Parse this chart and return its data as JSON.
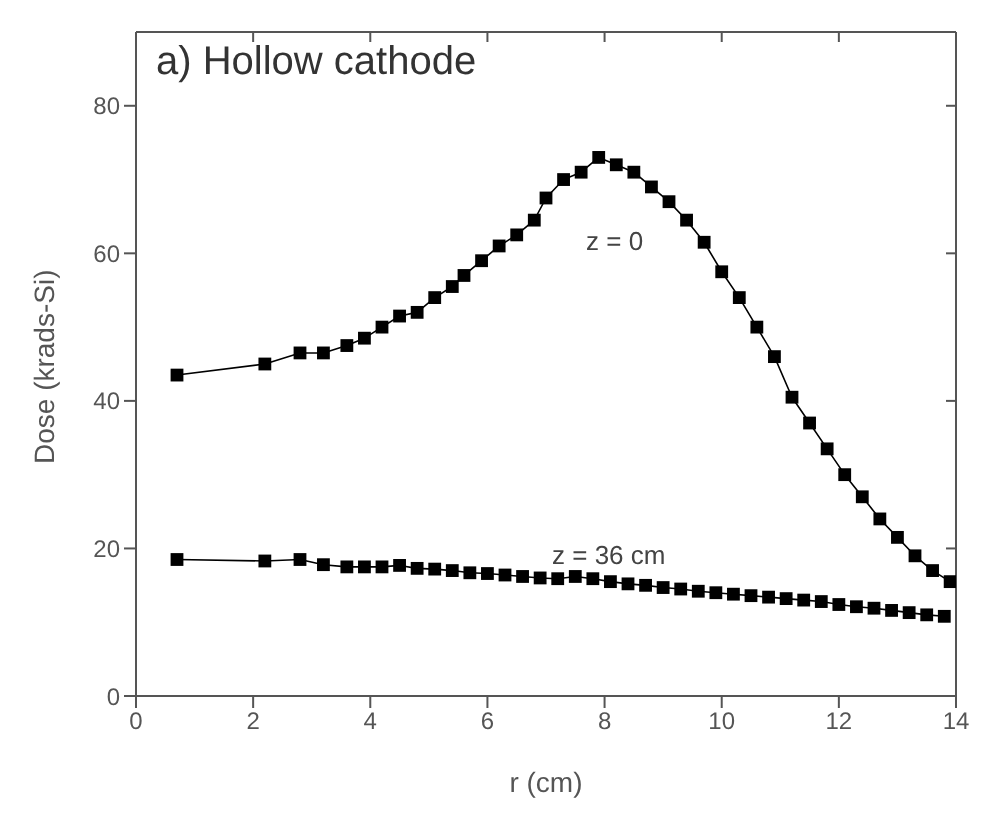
{
  "chart_data": {
    "type": "line",
    "title": "a) Hollow cathode",
    "xlabel": "r (cm)",
    "ylabel": "Dose (krads-Si)",
    "xlim": [
      0,
      14
    ],
    "xticks": [
      0,
      2,
      4,
      6,
      8,
      10,
      12,
      14
    ],
    "ylim": [
      0,
      90
    ],
    "yticks": [
      0,
      20,
      40,
      60,
      80
    ],
    "marker": "square",
    "line_style": "solid",
    "annotations": [
      "z = 0",
      "z = 36 cm"
    ],
    "series": [
      {
        "color": "#000000",
        "x": [
          0.7,
          2.2,
          2.8,
          3.2,
          3.6,
          3.9,
          4.2,
          4.5,
          4.8,
          5.1,
          5.4,
          5.6,
          5.9,
          6.2,
          6.5,
          6.8,
          7.0,
          7.3,
          7.6,
          7.9,
          8.2,
          8.5,
          8.8,
          9.1,
          9.4,
          9.7,
          10.0,
          10.3,
          10.6,
          10.9,
          11.2,
          11.5,
          11.8,
          12.1,
          12.4,
          12.7,
          13.0,
          13.3,
          13.6,
          13.9
        ],
        "values": [
          43.5,
          45,
          46.5,
          46.5,
          47.5,
          48.5,
          50,
          51.5,
          52,
          54,
          55.5,
          57,
          59,
          61,
          62.5,
          64.5,
          67.5,
          70,
          71,
          73,
          72,
          71,
          69,
          67,
          64.5,
          61.5,
          57.5,
          54,
          50,
          46,
          40.5,
          37,
          33.5,
          30,
          27,
          24,
          21.5,
          19,
          17,
          15.5
        ]
      },
      {
        "color": "#000000",
        "x": [
          0.7,
          2.2,
          2.8,
          3.2,
          3.6,
          3.9,
          4.2,
          4.5,
          4.8,
          5.1,
          5.4,
          5.7,
          6.0,
          6.3,
          6.6,
          6.9,
          7.2,
          7.5,
          7.8,
          8.1,
          8.4,
          8.7,
          9.0,
          9.3,
          9.6,
          9.9,
          10.2,
          10.5,
          10.8,
          11.1,
          11.4,
          11.7,
          12.0,
          12.3,
          12.6,
          12.9,
          13.2,
          13.5,
          13.8
        ],
        "values": [
          18.5,
          18.3,
          18.5,
          17.8,
          17.5,
          17.5,
          17.5,
          17.7,
          17.3,
          17.2,
          17,
          16.7,
          16.6,
          16.4,
          16.2,
          16,
          15.9,
          16.2,
          15.9,
          15.5,
          15.2,
          15,
          14.7,
          14.5,
          14.2,
          14,
          13.8,
          13.6,
          13.4,
          13.2,
          13,
          12.8,
          12.4,
          12.1,
          11.9,
          11.6,
          11.3,
          11,
          10.8
        ]
      }
    ]
  }
}
